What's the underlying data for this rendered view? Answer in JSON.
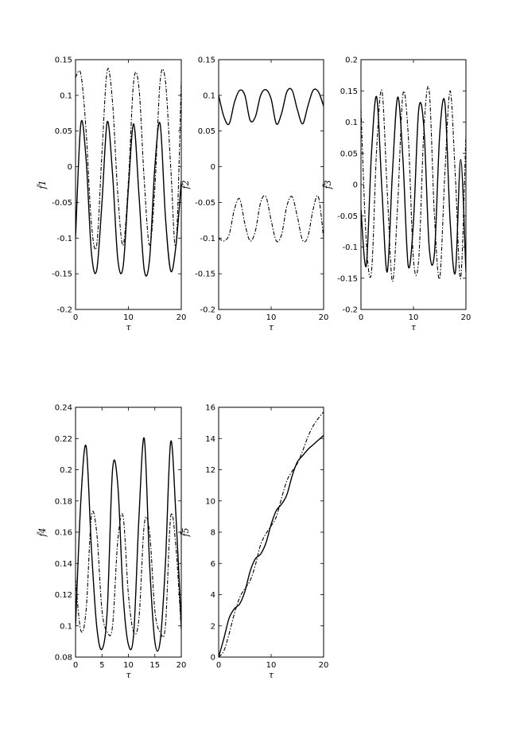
{
  "chart_data": [
    {
      "type": "line",
      "xlabel": "τ",
      "ylabel": "f̃1",
      "xlim": [
        0,
        20
      ],
      "ylim": [
        -0.2,
        0.15
      ],
      "xticks": [
        "0",
        "10",
        "20"
      ],
      "yticks": [
        "-0.2",
        "-0.15",
        "-0.1",
        "-0.05",
        "0",
        "0.05",
        "0.1",
        "0.15"
      ],
      "series": [
        {
          "style": "solid",
          "x": [
            0,
            1,
            2,
            3,
            4,
            5,
            6,
            7,
            8,
            9,
            10,
            11,
            12,
            13,
            14,
            15,
            16,
            17,
            18,
            19,
            20
          ],
          "y": [
            -0.1,
            0.06,
            0.01,
            -0.12,
            -0.145,
            -0.05,
            0.063,
            -0.01,
            -0.13,
            -0.14,
            -0.03,
            0.06,
            -0.04,
            -0.145,
            -0.13,
            0.0,
            0.06,
            -0.07,
            -0.146,
            -0.11,
            -0.02
          ]
        },
        {
          "style": "dash-dot",
          "x": [
            0,
            1,
            2,
            3,
            4,
            5,
            6,
            7,
            8,
            9,
            10,
            11,
            12,
            13,
            14,
            15,
            16,
            17,
            18,
            19,
            20
          ],
          "y": [
            0.125,
            0.13,
            0.05,
            -0.08,
            -0.11,
            0.02,
            0.135,
            0.09,
            -0.04,
            -0.11,
            -0.02,
            0.12,
            0.11,
            -0.02,
            -0.11,
            -0.03,
            0.12,
            0.12,
            0.0,
            -0.11,
            0.12
          ]
        }
      ]
    },
    {
      "type": "line",
      "xlabel": "τ",
      "ylabel": "f̃2",
      "xlim": [
        0,
        20
      ],
      "ylim": [
        -0.2,
        0.15
      ],
      "xticks": [
        "0",
        "10",
        "20"
      ],
      "yticks": [
        "-0.2",
        "-0.15",
        "-0.1",
        "-0.05",
        "0",
        "0.05",
        "0.1",
        "0.15"
      ],
      "series": [
        {
          "style": "solid",
          "x": [
            0,
            1,
            2,
            3,
            4,
            5,
            6,
            7,
            8,
            9,
            10,
            11,
            12,
            13,
            14,
            15,
            16,
            17,
            18,
            19,
            20
          ],
          "y": [
            0.1,
            0.07,
            0.06,
            0.09,
            0.107,
            0.1,
            0.065,
            0.07,
            0.1,
            0.108,
            0.095,
            0.06,
            0.075,
            0.105,
            0.107,
            0.08,
            0.06,
            0.085,
            0.107,
            0.105,
            0.085
          ]
        },
        {
          "style": "dash-dot",
          "x": [
            0,
            1,
            2,
            3,
            4,
            5,
            6,
            7,
            8,
            9,
            10,
            11,
            12,
            13,
            14,
            15,
            16,
            17,
            18,
            19,
            20
          ],
          "y": [
            -0.1,
            -0.104,
            -0.095,
            -0.06,
            -0.045,
            -0.08,
            -0.104,
            -0.09,
            -0.05,
            -0.042,
            -0.075,
            -0.104,
            -0.095,
            -0.055,
            -0.042,
            -0.07,
            -0.103,
            -0.098,
            -0.06,
            -0.042,
            -0.1
          ]
        }
      ]
    },
    {
      "type": "line",
      "xlabel": "τ",
      "ylabel": "f̃3",
      "xlim": [
        0,
        20
      ],
      "ylim": [
        -0.2,
        0.2
      ],
      "xticks": [
        "0",
        "10",
        "20"
      ],
      "yticks": [
        "-0.2",
        "-0.15",
        "-0.1",
        "-0.05",
        "0",
        "0.05",
        "0.1",
        "0.15",
        "0.2"
      ],
      "series": [
        {
          "style": "solid",
          "x": [
            0,
            1,
            2,
            3,
            4,
            5,
            6,
            7,
            8,
            9,
            10,
            11,
            12,
            13,
            14,
            15,
            16,
            17,
            18,
            19,
            20
          ],
          "y": [
            -0.04,
            -0.13,
            0.05,
            0.14,
            -0.01,
            -0.14,
            0.02,
            0.14,
            0.04,
            -0.13,
            -0.06,
            0.12,
            0.09,
            -0.1,
            -0.11,
            0.08,
            0.13,
            -0.06,
            -0.14,
            0.04,
            -0.14
          ]
        },
        {
          "style": "dash-dot",
          "x": [
            0,
            1,
            2,
            3,
            4,
            5,
            6,
            7,
            8,
            9,
            10,
            11,
            12,
            13,
            14,
            15,
            16,
            17,
            18,
            19,
            20
          ],
          "y": [
            0.12,
            -0.09,
            -0.14,
            0.06,
            0.15,
            -0.01,
            -0.155,
            -0.03,
            0.145,
            0.08,
            -0.12,
            -0.12,
            0.09,
            0.15,
            -0.05,
            -0.15,
            0.02,
            0.15,
            0.01,
            -0.15,
            0.08
          ]
        }
      ]
    },
    {
      "type": "line",
      "xlabel": "τ",
      "ylabel": "f̃4",
      "xlim": [
        0,
        20
      ],
      "ylim": [
        0.08,
        0.24
      ],
      "xticks": [
        "0",
        "5",
        "10",
        "15",
        "20"
      ],
      "yticks": [
        "0.08",
        "0.1",
        "0.12",
        "0.14",
        "0.16",
        "0.18",
        "0.2",
        "0.22",
        "0.24"
      ],
      "series": [
        {
          "style": "solid",
          "x": [
            0,
            1,
            2,
            3,
            4,
            5,
            6,
            7,
            8,
            9,
            10,
            11,
            12,
            13,
            14,
            15,
            16,
            17,
            18,
            19,
            20
          ],
          "y": [
            0.1,
            0.18,
            0.215,
            0.15,
            0.1,
            0.085,
            0.11,
            0.2,
            0.19,
            0.12,
            0.088,
            0.095,
            0.17,
            0.22,
            0.14,
            0.09,
            0.09,
            0.14,
            0.218,
            0.17,
            0.1
          ]
        },
        {
          "style": "dash-dot",
          "x": [
            0,
            1,
            2,
            3,
            4,
            5,
            6,
            7,
            8,
            9,
            10,
            11,
            12,
            13,
            14,
            15,
            16,
            17,
            18,
            19,
            20
          ],
          "y": [
            0.13,
            0.097,
            0.11,
            0.17,
            0.16,
            0.11,
            0.096,
            0.1,
            0.155,
            0.17,
            0.12,
            0.096,
            0.105,
            0.165,
            0.16,
            0.11,
            0.096,
            0.1,
            0.17,
            0.15,
            0.097
          ]
        }
      ]
    },
    {
      "type": "line",
      "xlabel": "τ",
      "ylabel": "f̃5",
      "xlim": [
        0,
        20
      ],
      "ylim": [
        0,
        16
      ],
      "xticks": [
        "0",
        "10",
        "20"
      ],
      "yticks": [
        "0",
        "2",
        "4",
        "6",
        "8",
        "10",
        "12",
        "14",
        "16"
      ],
      "series": [
        {
          "style": "solid",
          "x": [
            0,
            1,
            2,
            3,
            4,
            5,
            6,
            7,
            8,
            9,
            10,
            11,
            12,
            13,
            14,
            15,
            16,
            17,
            18,
            19,
            20
          ],
          "y": [
            0.0,
            1.2,
            2.5,
            3.1,
            3.4,
            4.2,
            5.5,
            6.3,
            6.6,
            7.3,
            8.5,
            9.4,
            9.8,
            10.4,
            11.6,
            12.5,
            12.9,
            13.3,
            13.6,
            13.9,
            14.2
          ]
        },
        {
          "style": "dash-dot",
          "x": [
            0,
            1,
            2,
            3,
            4,
            5,
            6,
            7,
            8,
            9,
            10,
            11,
            12,
            13,
            14,
            15,
            16,
            17,
            18,
            19,
            20
          ],
          "y": [
            0.0,
            0.4,
            1.5,
            2.8,
            3.8,
            4.4,
            4.9,
            5.9,
            7.2,
            7.9,
            8.4,
            9.0,
            10.2,
            11.3,
            11.9,
            12.4,
            13.2,
            14.1,
            14.8,
            15.3,
            15.7
          ]
        }
      ]
    }
  ]
}
